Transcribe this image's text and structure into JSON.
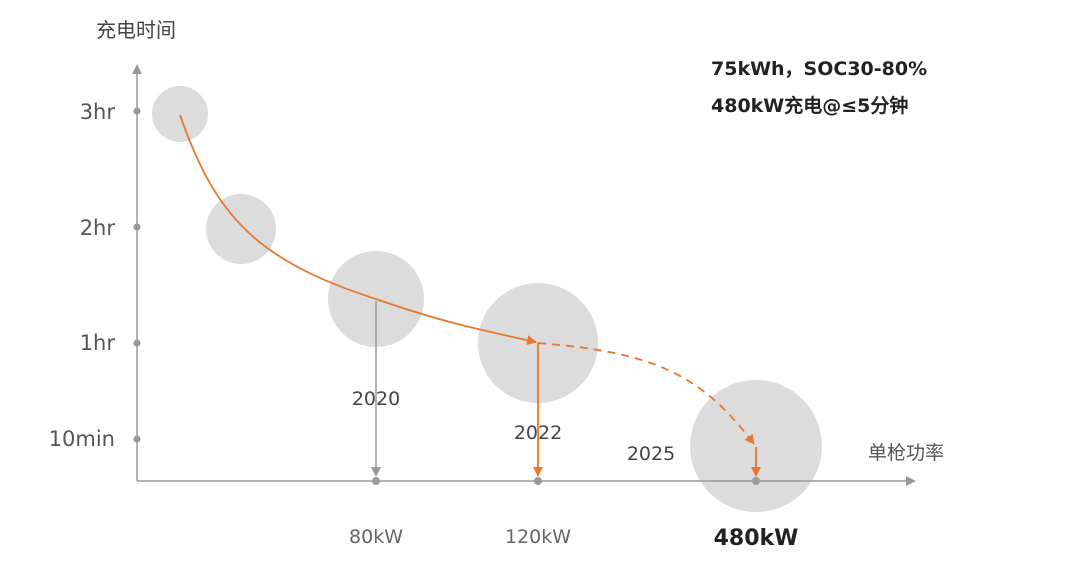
{
  "chart_data": {
    "type": "scatter",
    "title": "",
    "ylabel": "充电时间",
    "xlabel": "单枪功率",
    "yticks": [
      {
        "label": "3hr",
        "minutes": 180
      },
      {
        "label": "2hr",
        "minutes": 120
      },
      {
        "label": "1hr",
        "minutes": 60
      },
      {
        "label": "10min",
        "minutes": 10
      }
    ],
    "xticks": [
      {
        "label": "80kW",
        "power_kw": 80,
        "bold": false
      },
      {
        "label": "120kW",
        "power_kw": 120,
        "bold": false
      },
      {
        "label": "480kW",
        "power_kw": 480,
        "bold": true
      }
    ],
    "points": [
      {
        "charge_time_minutes": 180
      },
      {
        "charge_time_minutes": 120
      },
      {
        "power_kw": 80,
        "charge_time_minutes": 80,
        "year": "2020"
      },
      {
        "power_kw": 120,
        "charge_time_minutes": 60,
        "year": "2022"
      },
      {
        "power_kw": 480,
        "charge_time_minutes": 10,
        "year": "2025"
      }
    ],
    "annotations": [
      "75kWh，SOC30-80%",
      "480kW充电@≤5分钟"
    ],
    "colors": {
      "trend": "#E87830",
      "bubble": "#DCDCDC",
      "axis": "#999999",
      "marker": "#999999"
    }
  }
}
